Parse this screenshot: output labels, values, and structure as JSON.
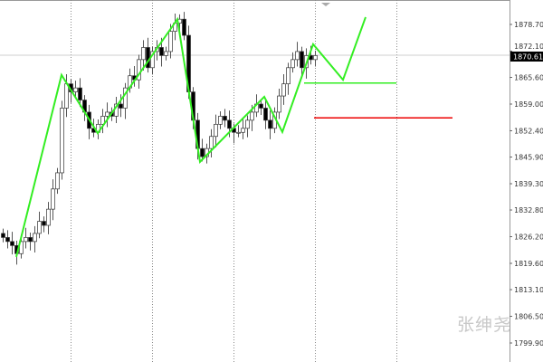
{
  "chart_data": {
    "type": "candlestick",
    "y_ticks": [
      "1878.70",
      "1872.10",
      "1865.60",
      "1859.00",
      "1852.40",
      "1845.90",
      "1839.30",
      "1832.80",
      "1826.20",
      "1819.60",
      "1813.10",
      "1806.50",
      "1799.90"
    ],
    "ylim": [
      1799.9,
      1878.7
    ],
    "grid": "vertical dotted",
    "current_price": "1870.61",
    "closes": [
      1826,
      1825,
      1824,
      1822,
      1825,
      1826,
      1825,
      1827,
      1830,
      1829,
      1833,
      1838,
      1842,
      1858,
      1864,
      1862,
      1863,
      1860,
      1857,
      1853,
      1852,
      1854,
      1856,
      1857,
      1856,
      1859,
      1858,
      1863,
      1866,
      1865,
      1870,
      1873,
      1868,
      1872,
      1873,
      1871,
      1872,
      1877,
      1879,
      1880,
      1876,
      1862,
      1855,
      1848,
      1846,
      1848,
      1851,
      1854,
      1856,
      1855,
      1853,
      1852,
      1852,
      1853,
      1855,
      1857,
      1859,
      1858,
      1855,
      1853,
      1857,
      1861,
      1864,
      1868,
      1870,
      1872,
      1868,
      1871,
      1870,
      1871
    ],
    "zigzag": [
      1821.2,
      1866.2,
      1851.8,
      1880.0,
      1844.7,
      1860.8,
      1852.1,
      1873.8,
      1865.0,
      1880.5
    ],
    "green_level": 1864.2,
    "red_level": 1855.6,
    "colors": {
      "zigzag": "#33ee22",
      "red_level": "#ee0000",
      "bull": "#ffffff",
      "bear": "#000000",
      "wick": "#555555"
    }
  },
  "watermark": "张绅尧"
}
